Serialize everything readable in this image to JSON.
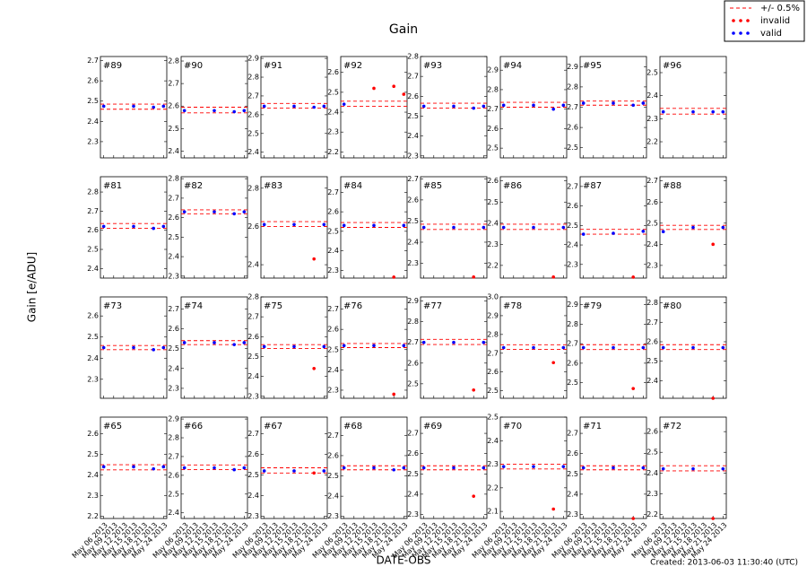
{
  "chart_data": {
    "type": "scatter",
    "title": "Gain",
    "xlabel": "DATE-OBS",
    "ylabel": "Gain [e/ADU]",
    "note": "Created: 2013-06-03 11:30:40 (UTC)",
    "series": [
      {
        "name": "+/- 0.5%",
        "color": "#ff0000"
      },
      {
        "name": "invalid",
        "color": "#ff0000"
      },
      {
        "name": "valid",
        "color": "#0000ff"
      }
    ],
    "x": [
      "2013-05-06",
      "2013-05-15",
      "2013-05-21",
      "2013-05-24"
    ],
    "xlim": [
      "2013-05-05",
      "2013-05-25"
    ],
    "xticks": [
      {
        "value": "2013-05-06",
        "label": "May 06 2013"
      },
      {
        "value": "2013-05-09",
        "label": "May 09 2013"
      },
      {
        "value": "2013-05-12",
        "label": "May 12 2013"
      },
      {
        "value": "2013-05-15",
        "label": "May 15 2013"
      },
      {
        "value": "2013-05-18",
        "label": "May 18 2013"
      },
      {
        "value": "2013-05-21",
        "label": "May 21 2013"
      },
      {
        "value": "2013-05-24",
        "label": "May 24 2013"
      }
    ],
    "panels": [
      {
        "title": "#89",
        "ylim": [
          2.22,
          2.72
        ],
        "yticks": [
          2.3,
          2.4,
          2.5,
          2.6,
          2.7
        ],
        "series": [
          [
            2.46,
            2.485
          ],
          [
            null,
            null,
            null,
            null
          ],
          [
            2.475,
            2.475,
            2.47,
            2.475
          ]
        ]
      },
      {
        "title": "#90",
        "ylim": [
          2.37,
          2.82
        ],
        "yticks": [
          2.4,
          2.5,
          2.6,
          2.7,
          2.8
        ],
        "series": [
          [
            2.57,
            2.595
          ],
          [
            null,
            null,
            null,
            null
          ],
          [
            2.58,
            2.58,
            2.575,
            2.58
          ]
        ]
      },
      {
        "title": "#91",
        "ylim": [
          2.37,
          2.91
        ],
        "yticks": [
          2.4,
          2.5,
          2.6,
          2.7,
          2.8,
          2.9
        ],
        "series": [
          [
            2.635,
            2.66
          ],
          [
            null,
            null,
            null,
            null
          ],
          [
            2.645,
            2.645,
            2.64,
            2.645
          ]
        ]
      },
      {
        "title": "#92",
        "ylim": [
          2.17,
          2.68
        ],
        "yticks": [
          2.2,
          2.3,
          2.4,
          2.5,
          2.6
        ],
        "series": [
          [
            2.43,
            2.455
          ],
          [
            null,
            2.52,
            2.53,
            2.49
          ],
          [
            2.44,
            null,
            null,
            null
          ]
        ]
      },
      {
        "title": "#93",
        "ylim": [
          2.29,
          2.8
        ],
        "yticks": [
          2.3,
          2.4,
          2.5,
          2.6,
          2.7,
          2.8
        ],
        "series": [
          [
            2.54,
            2.565
          ],
          [
            null,
            null,
            null,
            null
          ],
          [
            2.55,
            2.55,
            2.54,
            2.55
          ]
        ]
      },
      {
        "title": "#94",
        "ylim": [
          2.45,
          2.97
        ],
        "yticks": [
          2.5,
          2.6,
          2.7,
          2.8,
          2.9
        ],
        "series": [
          [
            2.71,
            2.735
          ],
          [
            null,
            null,
            null,
            null
          ],
          [
            2.72,
            2.72,
            2.7,
            2.72
          ]
        ]
      },
      {
        "title": "#95",
        "ylim": [
          2.45,
          2.95
        ],
        "yticks": [
          2.5,
          2.6,
          2.7,
          2.8,
          2.9
        ],
        "series": [
          [
            2.71,
            2.73
          ],
          [
            null,
            null,
            null,
            null
          ],
          [
            2.72,
            2.72,
            2.71,
            2.72
          ]
        ]
      },
      {
        "title": "#96",
        "ylim": [
          2.13,
          2.57
        ],
        "yticks": [
          2.2,
          2.3,
          2.4,
          2.5
        ],
        "series": [
          [
            2.32,
            2.345
          ],
          [
            null,
            null,
            null,
            null
          ],
          [
            2.33,
            2.33,
            2.33,
            2.33
          ]
        ]
      },
      {
        "title": "#81",
        "ylim": [
          2.35,
          2.88
        ],
        "yticks": [
          2.4,
          2.5,
          2.6,
          2.7,
          2.8
        ],
        "series": [
          [
            2.61,
            2.635
          ],
          [
            null,
            null,
            null,
            null
          ],
          [
            2.62,
            2.62,
            2.61,
            2.62
          ]
        ]
      },
      {
        "title": "#82",
        "ylim": [
          2.29,
          2.81
        ],
        "yticks": [
          2.3,
          2.4,
          2.5,
          2.6,
          2.7,
          2.8
        ],
        "series": [
          [
            2.62,
            2.64
          ],
          [
            null,
            null,
            null,
            null
          ],
          [
            2.63,
            2.63,
            2.62,
            2.63
          ]
        ]
      },
      {
        "title": "#83",
        "ylim": [
          2.33,
          2.86
        ],
        "yticks": [
          2.4,
          2.6,
          2.8
        ],
        "series": [
          [
            2.6,
            2.625
          ],
          [
            null,
            null,
            2.43,
            null
          ],
          [
            2.61,
            2.61,
            null,
            2.61
          ]
        ]
      },
      {
        "title": "#84",
        "ylim": [
          2.26,
          2.78
        ],
        "yticks": [
          2.3,
          2.4,
          2.5,
          2.6,
          2.7
        ],
        "series": [
          [
            2.52,
            2.545
          ],
          [
            null,
            null,
            2.265,
            null
          ],
          [
            2.53,
            2.53,
            null,
            2.53
          ]
        ]
      },
      {
        "title": "#85",
        "ylim": [
          2.23,
          2.71
        ],
        "yticks": [
          2.3,
          2.4,
          2.5,
          2.6,
          2.7
        ],
        "series": [
          [
            2.46,
            2.485
          ],
          [
            null,
            null,
            2.235,
            null
          ],
          [
            2.47,
            2.47,
            null,
            2.47
          ]
        ]
      },
      {
        "title": "#86",
        "ylim": [
          2.14,
          2.62
        ],
        "yticks": [
          2.2,
          2.3,
          2.4,
          2.5,
          2.6
        ],
        "series": [
          [
            2.37,
            2.395
          ],
          [
            null,
            null,
            2.145,
            null
          ],
          [
            2.38,
            2.38,
            null,
            2.38
          ]
        ]
      },
      {
        "title": "#87",
        "ylim": [
          2.23,
          2.75
        ],
        "yticks": [
          2.3,
          2.4,
          2.5,
          2.6,
          2.7
        ],
        "series": [
          [
            2.455,
            2.48
          ],
          [
            null,
            null,
            2.235,
            null
          ],
          [
            2.455,
            2.46,
            null,
            2.47
          ]
        ]
      },
      {
        "title": "#88",
        "ylim": [
          2.24,
          2.72
        ],
        "yticks": [
          2.3,
          2.4,
          2.5,
          2.6,
          2.7
        ],
        "series": [
          [
            2.47,
            2.49
          ],
          [
            null,
            null,
            2.4,
            null
          ],
          [
            2.46,
            2.48,
            null,
            2.48
          ]
        ]
      },
      {
        "title": "#73",
        "ylim": [
          2.21,
          2.69
        ],
        "yticks": [
          2.3,
          2.4,
          2.5,
          2.6
        ],
        "series": [
          [
            2.44,
            2.46
          ],
          [
            null,
            null,
            null,
            null
          ],
          [
            2.45,
            2.45,
            2.44,
            2.45
          ]
        ]
      },
      {
        "title": "#74",
        "ylim": [
          2.25,
          2.76
        ],
        "yticks": [
          2.3,
          2.4,
          2.5,
          2.6,
          2.7
        ],
        "series": [
          [
            2.52,
            2.54
          ],
          [
            null,
            null,
            null,
            null
          ],
          [
            2.53,
            2.53,
            2.52,
            2.53
          ]
        ]
      },
      {
        "title": "#75",
        "ylim": [
          2.29,
          2.8
        ],
        "yticks": [
          2.3,
          2.4,
          2.5,
          2.6,
          2.7,
          2.8
        ],
        "series": [
          [
            2.54,
            2.56
          ],
          [
            null,
            null,
            2.44,
            null
          ],
          [
            2.55,
            2.55,
            null,
            2.55
          ]
        ]
      },
      {
        "title": "#76",
        "ylim": [
          2.26,
          2.76
        ],
        "yticks": [
          2.3,
          2.4,
          2.5,
          2.6,
          2.7
        ],
        "series": [
          [
            2.51,
            2.53
          ],
          [
            null,
            null,
            2.28,
            null
          ],
          [
            2.52,
            2.52,
            null,
            2.52
          ]
        ]
      },
      {
        "title": "#77",
        "ylim": [
          2.43,
          2.92
        ],
        "yticks": [
          2.5,
          2.6,
          2.7,
          2.8,
          2.9
        ],
        "series": [
          [
            2.69,
            2.715
          ],
          [
            null,
            null,
            2.47,
            null
          ],
          [
            2.7,
            2.7,
            null,
            2.7
          ]
        ]
      },
      {
        "title": "#78",
        "ylim": [
          2.46,
          3.0
        ],
        "yticks": [
          2.5,
          2.6,
          2.7,
          2.8,
          2.9,
          {
            "value": 3.0,
            "label": "3.0"
          }
        ],
        "series": [
          [
            2.72,
            2.745
          ],
          [
            null,
            null,
            2.65,
            null
          ],
          [
            2.73,
            2.73,
            null,
            2.73
          ]
        ]
      },
      {
        "title": "#79",
        "ylim": [
          2.42,
          2.94
        ],
        "yticks": [
          2.5,
          2.6,
          2.7,
          2.8,
          2.9
        ],
        "series": [
          [
            2.67,
            2.695
          ],
          [
            null,
            null,
            2.47,
            null
          ],
          [
            2.68,
            2.68,
            null,
            2.68
          ]
        ]
      },
      {
        "title": "#80",
        "ylim": [
          2.31,
          2.83
        ],
        "yticks": [
          2.4,
          2.5,
          2.6,
          2.7,
          2.8
        ],
        "series": [
          [
            2.56,
            2.585
          ],
          [
            null,
            null,
            2.31,
            null
          ],
          [
            2.57,
            2.57,
            null,
            2.57
          ]
        ]
      },
      {
        "title": "#65",
        "ylim": [
          2.19,
          2.68
        ],
        "yticks": [
          2.2,
          2.3,
          2.4,
          2.5,
          2.6
        ],
        "series": [
          [
            2.425,
            2.45
          ],
          [
            null,
            null,
            null,
            null
          ],
          [
            2.44,
            2.44,
            2.43,
            2.44
          ]
        ]
      },
      {
        "title": "#66",
        "ylim": [
          2.37,
          2.91
        ],
        "yticks": [
          2.4,
          2.5,
          2.6,
          2.7,
          2.8,
          2.9
        ],
        "series": [
          [
            2.63,
            2.655
          ],
          [
            null,
            null,
            null,
            null
          ],
          [
            2.64,
            2.64,
            2.63,
            2.64
          ]
        ]
      },
      {
        "title": "#67",
        "ylim": [
          2.29,
          2.78
        ],
        "yticks": [
          2.3,
          2.4,
          2.5,
          2.6,
          2.7
        ],
        "series": [
          [
            2.51,
            2.535
          ],
          [
            null,
            null,
            2.51,
            null
          ],
          [
            2.52,
            2.52,
            null,
            2.52
          ]
        ]
      },
      {
        "title": "#68",
        "ylim": [
          2.29,
          2.79
        ],
        "yticks": [
          2.3,
          2.4,
          2.5,
          2.6,
          2.7
        ],
        "series": [
          [
            2.53,
            2.55
          ],
          [
            null,
            null,
            null,
            null
          ],
          [
            2.54,
            2.54,
            2.53,
            2.54
          ]
        ]
      },
      {
        "title": "#69",
        "ylim": [
          2.28,
          2.78
        ],
        "yticks": [
          2.3,
          2.4,
          2.5,
          2.6,
          2.7
        ],
        "series": [
          [
            2.52,
            2.54
          ],
          [
            null,
            null,
            2.39,
            null
          ],
          [
            2.53,
            2.53,
            null,
            2.53
          ]
        ]
      },
      {
        "title": "#70",
        "ylim": [
          2.07,
          2.5
        ],
        "yticks": [
          2.1,
          2.2,
          2.3,
          2.4,
          2.5
        ],
        "series": [
          [
            2.28,
            2.3
          ],
          [
            null,
            null,
            2.11,
            null
          ],
          [
            2.29,
            2.29,
            null,
            2.29
          ]
        ]
      },
      {
        "title": "#71",
        "ylim": [
          2.28,
          2.78
        ],
        "yticks": [
          2.3,
          2.4,
          2.5,
          2.6,
          2.7
        ],
        "series": [
          [
            2.52,
            2.54
          ],
          [
            null,
            null,
            2.28,
            null
          ],
          [
            2.53,
            2.53,
            null,
            2.53
          ]
        ]
      },
      {
        "title": "#72",
        "ylim": [
          2.18,
          2.67
        ],
        "yticks": [
          2.2,
          2.3,
          2.4,
          2.5,
          2.6
        ],
        "series": [
          [
            2.41,
            2.435
          ],
          [
            null,
            null,
            2.18,
            null
          ],
          [
            2.42,
            2.42,
            null,
            2.42
          ]
        ]
      }
    ]
  }
}
